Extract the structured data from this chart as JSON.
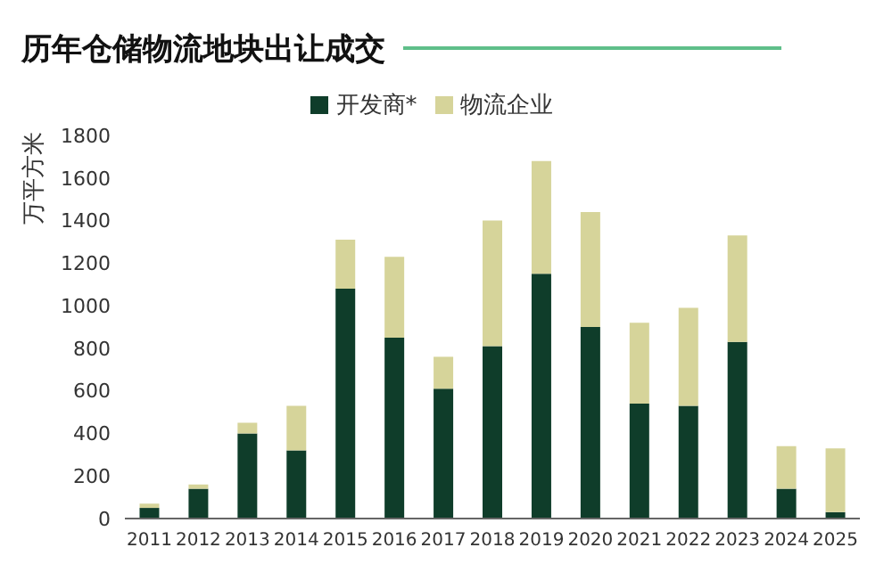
{
  "chart_data": {
    "type": "bar",
    "title": "历年仓储物流地块出让成交",
    "ylabel": "万平方米",
    "categories": [
      "2011",
      "2012",
      "2013",
      "2014",
      "2015",
      "2016",
      "2017",
      "2018",
      "2019",
      "2020",
      "2021",
      "2022",
      "2023",
      "2024",
      "2025"
    ],
    "series": [
      {
        "name": "开发商*",
        "color": "#0f3d2a",
        "values": [
          50,
          140,
          400,
          320,
          1080,
          850,
          610,
          810,
          1150,
          900,
          540,
          530,
          830,
          140,
          30
        ]
      },
      {
        "name": "物流企业",
        "color": "#d6d49a",
        "values": [
          20,
          20,
          50,
          210,
          230,
          380,
          150,
          590,
          530,
          540,
          380,
          460,
          500,
          200,
          300
        ]
      }
    ],
    "stacked": true,
    "ylim": [
      0,
      1800
    ],
    "yticks": [
      0,
      200,
      400,
      600,
      800,
      1000,
      1200,
      1400,
      1600,
      1800
    ],
    "grid": false,
    "legend": "top"
  }
}
